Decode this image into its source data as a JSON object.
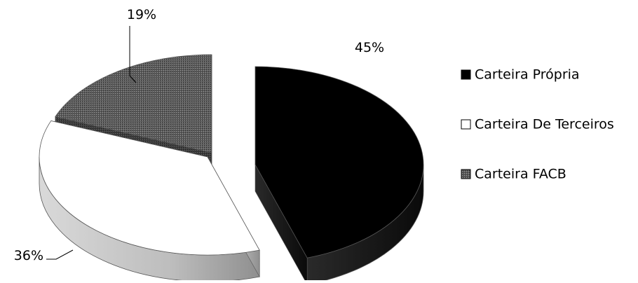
{
  "chart_data": {
    "type": "pie",
    "style": "exploded-3d",
    "title": "",
    "categories": [
      "Carteira Própria",
      "Carteira De Terceiros",
      "Carteira FACB"
    ],
    "values": [
      45,
      36,
      19
    ],
    "data_labels": [
      "45%",
      "36%",
      "19%"
    ],
    "legend": {
      "position": "right",
      "entries": [
        "Carteira Própria",
        "Carteira De Terceiros",
        "Carteira FACB"
      ]
    },
    "fills": [
      "solid-black",
      "white",
      "dark-gray-pattern"
    ],
    "colors": {
      "top": [
        "#000000",
        "#ffffff",
        "#5a5a5a"
      ],
      "side": [
        "#1a1a1a",
        "#bdbdbd",
        "#3a3a3a"
      ],
      "outline": "#555555"
    }
  }
}
